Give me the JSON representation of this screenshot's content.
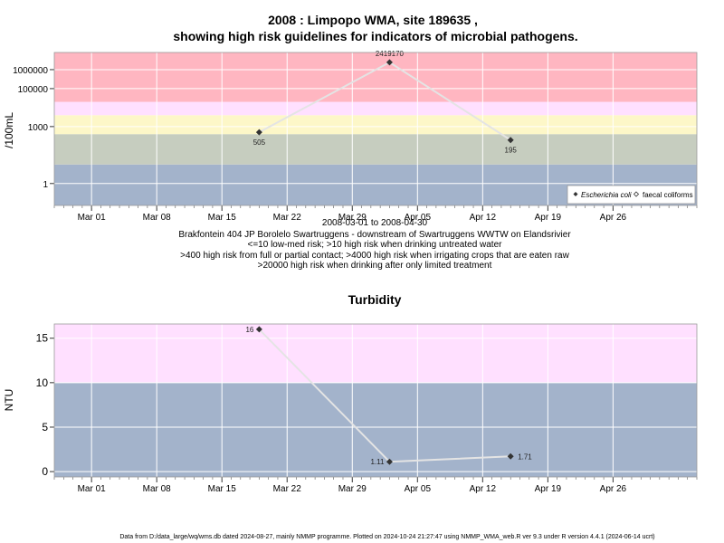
{
  "title_line1": "2008 : Limpopo WMA, site 189635 ,",
  "title_line2": "showing high risk guidelines for indicators of microbial pathogens.",
  "date_range": "2008-03-01 to 2008-04-30",
  "site_desc": "Brakfontein 404 JP Borolelo Swartruggens - downstream of Swartruggens WWTW on Elandsrivier",
  "guide1": "<=10 low-med risk; >10 high risk when drinking untreated water",
  "guide2": ">400 high risk from full or partial contact; >4000 high risk when irrigating crops that are eaten raw",
  "guide3": ">20000 high risk when drinking after only limited treatment",
  "footer": "Data from D:/data_large/wq/wms.db dated 2024-08-27, mainly NMMP programme. Plotted on 2024-10-24 21:27:47 using NMMP_WMA_web.R ver 9.3 under R version 4.4.1 (2024-06-14 ucrt)",
  "colors": {
    "red": "#ffb6c1",
    "lightpink": "#ffe0ff",
    "yellow": "#fdf7c8",
    "sage": "#c6cdbf",
    "slate": "#a3b3cb",
    "line": "#e4e4e4",
    "point": "#333333"
  },
  "chart_data": [
    {
      "type": "line",
      "ylabel": "/100mL",
      "yscale": "log",
      "xlim": [
        "2008-02-26",
        "2008-05-05"
      ],
      "ylim": [
        0.07,
        8000000
      ],
      "x_ticks": [
        "Mar 01",
        "Mar 08",
        "Mar 15",
        "Mar 22",
        "Mar 29",
        "Apr 05",
        "Apr 12",
        "Apr 19",
        "Apr 26"
      ],
      "y_ticks": [
        "1",
        "1000",
        "100000",
        "1000000"
      ],
      "bands": [
        {
          "from": 0.07,
          "to": 10,
          "color": "#a3b3cb"
        },
        {
          "from": 10,
          "to": 400,
          "color": "#c6cdbf"
        },
        {
          "from": 400,
          "to": 4000,
          "color": "#fdf7c8"
        },
        {
          "from": 4000,
          "to": 20000,
          "color": "#ffe0ff"
        },
        {
          "from": 20000,
          "to": 8000000,
          "color": "#ffb6c1"
        }
      ],
      "series": [
        {
          "name": "Escherichia coli",
          "marker": "filled-diamond",
          "x": [
            "2008-03-19",
            "2008-04-02",
            "2008-04-15"
          ],
          "values": [
            505,
            2419170,
            195
          ],
          "labels": [
            "505",
            "2419170",
            "195"
          ]
        }
      ],
      "legend_entries": [
        "Escherichia coli",
        "faecal coliforms"
      ],
      "legend": "bottom-right"
    },
    {
      "type": "line",
      "title": "Turbidity",
      "ylabel": "NTU",
      "xlim": [
        "2008-02-26",
        "2008-05-05"
      ],
      "ylim": [
        -0.6,
        16.6
      ],
      "x_ticks": [
        "Mar 01",
        "Mar 08",
        "Mar 15",
        "Mar 22",
        "Mar 29",
        "Apr 05",
        "Apr 12",
        "Apr 19",
        "Apr 26"
      ],
      "y_ticks": [
        "0",
        "5",
        "10",
        "15"
      ],
      "bands": [
        {
          "from": -0.6,
          "to": 10,
          "color": "#a3b3cb"
        },
        {
          "from": 10,
          "to": 16.6,
          "color": "#ffe0ff"
        }
      ],
      "series": [
        {
          "marker": "filled-diamond",
          "x": [
            "2008-03-19",
            "2008-04-02",
            "2008-04-15"
          ],
          "values": [
            16,
            1.11,
            1.71
          ],
          "labels": [
            "16",
            "1.11",
            "1.71"
          ]
        }
      ]
    }
  ]
}
